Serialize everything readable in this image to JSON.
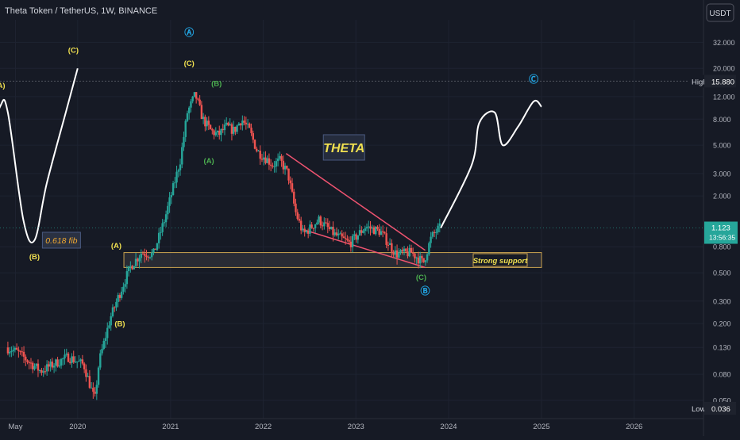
{
  "header": {
    "title": "Theta Token / TetherUS, 1W, BINANCE",
    "currency_button": "USDT"
  },
  "chart_data": {
    "type": "candlestick",
    "symbol": "THETAUSDT",
    "interval": "1W",
    "exchange": "BINANCE",
    "y_scale": "log",
    "ylim": [
      0.036,
      48
    ],
    "xlim": [
      "2019-03-01",
      "2026-10-01"
    ],
    "y_ticks": [
      "32.000",
      "20.000",
      "12.000",
      "8.000",
      "5.000",
      "3.000",
      "2.000",
      "0.800",
      "0.500",
      "0.300",
      "0.200",
      "0.130",
      "0.080",
      "0.050"
    ],
    "x_ticks": [
      "May",
      "2020",
      "2021",
      "2022",
      "2023",
      "2024",
      "2025",
      "2026"
    ],
    "price_markers": {
      "high": {
        "label": "High",
        "value": "15.880"
      },
      "low": {
        "label": "Low",
        "value": "0.036"
      },
      "last": {
        "value": "1.123",
        "countdown": "13:56:35"
      }
    },
    "ohlc_path": [
      [
        "2019-04-01",
        0.13
      ],
      [
        "2019-05-15",
        0.12
      ],
      [
        "2019-07-01",
        0.1
      ],
      [
        "2019-08-15",
        0.085
      ],
      [
        "2019-10-01",
        0.095
      ],
      [
        "2019-12-01",
        0.11
      ],
      [
        "2020-02-01",
        0.095
      ],
      [
        "2020-03-15",
        0.05
      ],
      [
        "2020-04-01",
        0.1
      ],
      [
        "2020-05-15",
        0.22
      ],
      [
        "2020-06-15",
        0.32
      ],
      [
        "2020-08-01",
        0.55
      ],
      [
        "2020-09-15",
        0.72
      ],
      [
        "2020-11-01",
        0.7
      ],
      [
        "2020-12-15",
        1.3
      ],
      [
        "2021-01-15",
        2.2
      ],
      [
        "2021-02-15",
        3.8
      ],
      [
        "2021-03-15",
        9.0
      ],
      [
        "2021-04-15",
        12.5
      ],
      [
        "2021-05-15",
        8.0
      ],
      [
        "2021-06-15",
        6.5
      ],
      [
        "2021-07-15",
        6.0
      ],
      [
        "2021-08-15",
        7.0
      ],
      [
        "2021-09-15",
        6.5
      ],
      [
        "2021-10-15",
        8.0
      ],
      [
        "2021-11-15",
        6.5
      ],
      [
        "2021-12-15",
        4.5
      ],
      [
        "2022-01-15",
        4.0
      ],
      [
        "2022-02-15",
        3.5
      ],
      [
        "2022-03-15",
        3.8
      ],
      [
        "2022-04-15",
        3.0
      ],
      [
        "2022-05-15",
        1.5
      ],
      [
        "2022-06-15",
        1.0
      ],
      [
        "2022-08-15",
        1.3
      ],
      [
        "2022-10-15",
        1.0
      ],
      [
        "2022-12-15",
        0.85
      ],
      [
        "2023-02-15",
        1.15
      ],
      [
        "2023-04-15",
        1.05
      ],
      [
        "2023-06-15",
        0.7
      ],
      [
        "2023-08-15",
        0.72
      ],
      [
        "2023-10-01",
        0.6
      ],
      [
        "2023-11-01",
        0.95
      ],
      [
        "2023-12-01",
        1.123
      ]
    ],
    "support_zone": {
      "label": "Strong support",
      "from": "2020-07-01",
      "to": "2025-01-01",
      "low": 0.55,
      "high": 0.72
    },
    "falling_wedge": {
      "upper": [
        [
          "2022-04-01",
          4.3
        ],
        [
          "2023-10-01",
          0.75
        ]
      ],
      "lower": [
        [
          "2022-06-01",
          1.1
        ],
        [
          "2023-10-01",
          0.55
        ]
      ]
    },
    "projection_path": [
      [
        "2023-12-01",
        1.123
      ],
      [
        "2024-04-01",
        3.5
      ],
      [
        "2024-05-01",
        7.5
      ],
      [
        "2024-07-01",
        9.0
      ],
      [
        "2024-08-01",
        5.0
      ],
      [
        "2024-10-01",
        7.0
      ],
      [
        "2024-12-01",
        11.0
      ],
      [
        "2025-01-01",
        10.0
      ]
    ],
    "left_drawing": {
      "path": [
        [
          "2018-06-15",
          0.185
        ],
        [
          "2018-09-01",
          0.6
        ],
        [
          "2018-11-01",
          1.6
        ],
        [
          "2019-01-01",
          4.0
        ],
        [
          "2019-03-01",
          10.0
        ],
        [
          "2019-04-01",
          9.0
        ],
        [
          "2019-06-01",
          1.3
        ],
        [
          "2019-07-15",
          0.9
        ],
        [
          "2019-09-01",
          2.5
        ],
        [
          "2019-11-15",
          9.0
        ],
        [
          "2020-01-01",
          20.0
        ]
      ],
      "fib_label": {
        "text": "0.618 fib",
        "date": "2019-08-15",
        "price": 0.9
      }
    },
    "wave_labels": [
      {
        "text": "(A)",
        "date": "2019-03-01",
        "price": 14.0,
        "color": "#f0e050"
      },
      {
        "text": "(B)",
        "date": "2019-07-15",
        "price": 0.64,
        "color": "#f0e050"
      },
      {
        "text": "(C)",
        "date": "2019-12-15",
        "price": 26.5,
        "color": "#f0e050"
      },
      {
        "text": "(A)",
        "date": "2020-06-01",
        "price": 0.78,
        "color": "#f0e050"
      },
      {
        "text": "(B)",
        "date": "2020-06-15",
        "price": 0.19,
        "color": "#f0e050"
      },
      {
        "text": "(C)",
        "date": "2021-03-15",
        "price": 21.0,
        "color": "#f0e050"
      },
      {
        "text": "Ⓐ",
        "date": "2021-03-15",
        "price": 36.0,
        "color": "#22a7e6"
      },
      {
        "text": "(B)",
        "date": "2021-07-01",
        "price": 14.5,
        "color": "#4caf50"
      },
      {
        "text": "(A)",
        "date": "2021-06-01",
        "price": 3.6,
        "color": "#4caf50"
      },
      {
        "text": "(C)",
        "date": "2023-09-15",
        "price": 0.44,
        "color": "#4caf50"
      },
      {
        "text": "Ⓑ",
        "date": "2023-10-01",
        "price": 0.34,
        "color": "#22a7e6"
      },
      {
        "text": "Ⓒ",
        "date": "2024-12-01",
        "price": 15.5,
        "color": "#22a7e6"
      }
    ],
    "annotations": [
      {
        "text": "THETA",
        "date": "2022-11-15",
        "price": 4.8,
        "color": "#f0e050",
        "bg": "#252c3d"
      }
    ],
    "colors": {
      "up": "#26a69a",
      "down": "#ef5350",
      "background": "#161a25",
      "grid": "#1e2331",
      "wedge": "#ef5370",
      "support_border": "#c9a250",
      "support_fill": "#3a3a42",
      "label_yellow": "#f0e050",
      "label_blue": "#22a7e6",
      "label_green": "#4caf50"
    }
  }
}
